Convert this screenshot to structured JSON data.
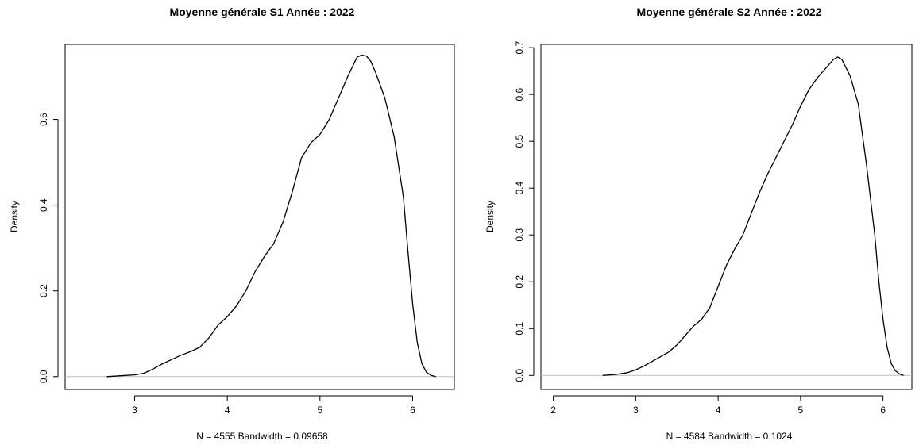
{
  "chart_data": [
    {
      "type": "line",
      "title": "Moyenne générale S1 Année : 2022",
      "xlabel": "N = 4555   Bandwidth = 0.09658",
      "ylabel": "Density",
      "xlim": [
        2.25,
        6.45
      ],
      "ylim": [
        -0.03,
        0.775
      ],
      "xticks": [
        3,
        4,
        5,
        6
      ],
      "yticks": [
        0.0,
        0.2,
        0.4,
        0.6
      ],
      "ytick_labels": [
        "0.0",
        "0.2",
        "0.4",
        "0.6"
      ],
      "grid": false,
      "baseline": 0,
      "baseline_color": "#bebebe",
      "line_color": "#000000",
      "series": [
        {
          "x": [
            2.7,
            2.85,
            3.0,
            3.1,
            3.2,
            3.3,
            3.4,
            3.5,
            3.6,
            3.7,
            3.8,
            3.9,
            4.0,
            4.1,
            4.2,
            4.3,
            4.4,
            4.5,
            4.6,
            4.7,
            4.8,
            4.9,
            5.0,
            5.1,
            5.2,
            5.3,
            5.4,
            5.45,
            5.5,
            5.55,
            5.6,
            5.7,
            5.8,
            5.9,
            5.95,
            6.0,
            6.05,
            6.1,
            6.15,
            6.2,
            6.25
          ],
          "y": [
            0.0,
            0.002,
            0.004,
            0.008,
            0.018,
            0.03,
            0.04,
            0.05,
            0.058,
            0.068,
            0.09,
            0.12,
            0.14,
            0.165,
            0.2,
            0.245,
            0.28,
            0.31,
            0.36,
            0.43,
            0.51,
            0.545,
            0.565,
            0.6,
            0.65,
            0.7,
            0.745,
            0.75,
            0.748,
            0.735,
            0.71,
            0.65,
            0.56,
            0.42,
            0.29,
            0.17,
            0.08,
            0.03,
            0.01,
            0.003,
            0.0
          ]
        }
      ]
    },
    {
      "type": "line",
      "title": "Moyenne générale S2 Année : 2022",
      "xlabel": "N = 4584   Bandwidth = 0.1024",
      "ylabel": "Density",
      "xlim": [
        1.85,
        6.35
      ],
      "ylim": [
        -0.03,
        0.707
      ],
      "xticks": [
        2,
        3,
        4,
        5,
        6
      ],
      "yticks": [
        0.0,
        0.1,
        0.2,
        0.3,
        0.4,
        0.5,
        0.6,
        0.7
      ],
      "ytick_labels": [
        "0.0",
        "0.1",
        "0.2",
        "0.3",
        "0.4",
        "0.5",
        "0.6",
        "0.7"
      ],
      "grid": false,
      "baseline": 0,
      "baseline_color": "#bebebe",
      "line_color": "#000000",
      "series": [
        {
          "x": [
            2.6,
            2.75,
            2.9,
            3.0,
            3.1,
            3.2,
            3.3,
            3.4,
            3.5,
            3.6,
            3.7,
            3.8,
            3.9,
            4.0,
            4.1,
            4.2,
            4.3,
            4.4,
            4.5,
            4.6,
            4.7,
            4.8,
            4.9,
            5.0,
            5.1,
            5.2,
            5.3,
            5.4,
            5.45,
            5.5,
            5.6,
            5.7,
            5.8,
            5.9,
            5.95,
            6.0,
            6.05,
            6.1,
            6.15,
            6.2,
            6.25
          ],
          "y": [
            0.0,
            0.002,
            0.006,
            0.012,
            0.02,
            0.03,
            0.04,
            0.05,
            0.065,
            0.085,
            0.105,
            0.12,
            0.145,
            0.19,
            0.235,
            0.27,
            0.3,
            0.345,
            0.39,
            0.43,
            0.465,
            0.5,
            0.535,
            0.575,
            0.61,
            0.635,
            0.655,
            0.675,
            0.68,
            0.675,
            0.64,
            0.58,
            0.45,
            0.3,
            0.2,
            0.12,
            0.06,
            0.025,
            0.01,
            0.003,
            0.0
          ]
        }
      ]
    }
  ]
}
